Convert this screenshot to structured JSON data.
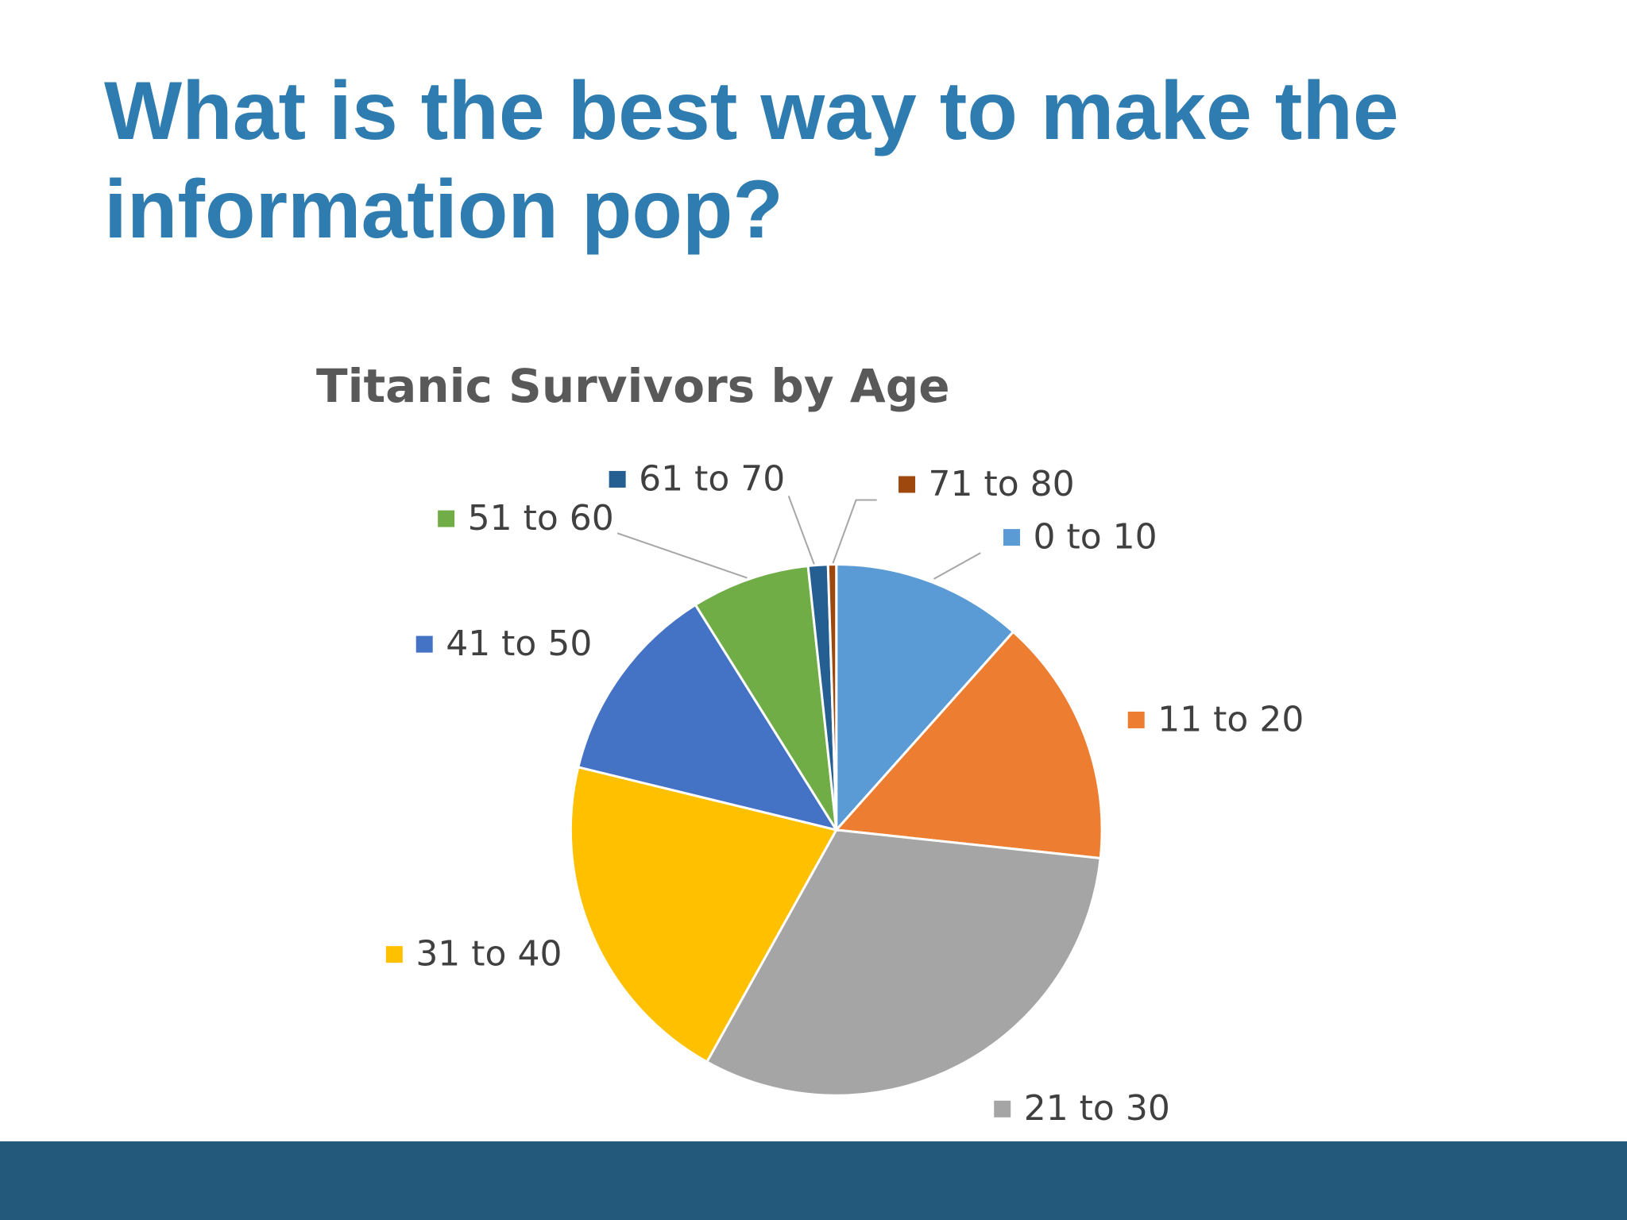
{
  "slide_title": "What is the best way to make the information pop?",
  "chart_data": {
    "type": "pie",
    "title": "Titanic Survivors by Age",
    "categories": [
      "0 to 10",
      "11 to 20",
      "21 to 30",
      "31 to 40",
      "41 to 50",
      "51 to 60",
      "61 to 70",
      "71 to 80"
    ],
    "values": [
      11.6,
      15.1,
      31.4,
      20.7,
      12.3,
      7.2,
      1.2,
      0.5
    ],
    "colors": [
      "#5b9bd5",
      "#ed7d31",
      "#a5a5a5",
      "#ffc000",
      "#4472c4",
      "#70ad47",
      "#255e91",
      "#9e480e"
    ]
  }
}
